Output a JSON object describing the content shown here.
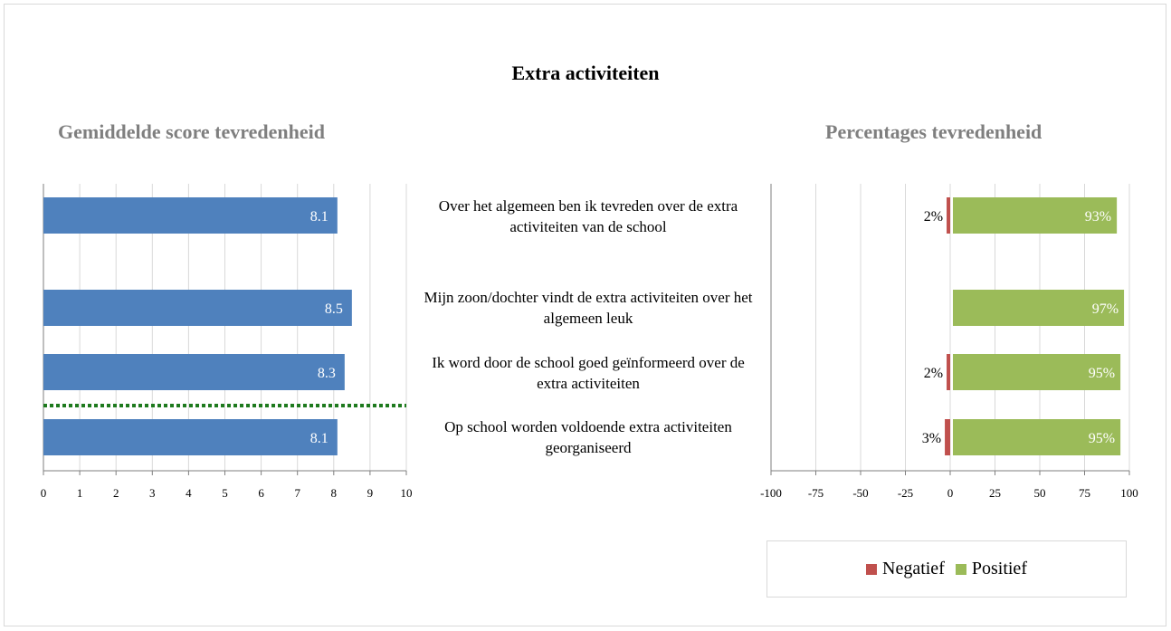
{
  "title": "Extra activiteiten",
  "questions": [
    "Over het algemeen ben ik tevreden over de extra activiteiten van de school",
    "Mijn zoon/dochter vindt de extra activiteiten over het algemeen leuk",
    "Ik word door de school goed geïnformeerd over de extra activiteiten",
    "Op school worden voldoende extra activiteiten georganiseerd"
  ],
  "colors": {
    "score_bar": "#4f81bd",
    "negative": "#c0504d",
    "positive": "#9bbb59",
    "reference_line": "#1e7a1e",
    "grid": "#d9d9d9"
  },
  "chart_data": [
    {
      "type": "bar",
      "orientation": "horizontal",
      "title": "Gemiddelde score tevredenheid",
      "categories": [
        "Over het algemeen ben ik tevreden over de extra activiteiten van de school",
        "Mijn zoon/dochter vindt de extra activiteiten over het algemeen leuk",
        "Ik word door de school goed geïnformeerd over de extra activiteiten",
        "Op school worden voldoende extra activiteiten georganiseerd"
      ],
      "values": [
        8.1,
        8.5,
        8.3,
        8.1
      ],
      "value_labels": [
        "8.1",
        "8.5",
        "8.3",
        "8.1"
      ],
      "xlim": [
        0,
        10
      ],
      "x_ticks": [
        "0",
        "1",
        "2",
        "3",
        "4",
        "5",
        "6",
        "7",
        "8",
        "9",
        "10"
      ],
      "grid": true,
      "reference_line": {
        "style": "dotted",
        "position": "between 3rd and 4th bar"
      }
    },
    {
      "type": "bar",
      "orientation": "horizontal",
      "stacked": "diverging",
      "title": "Percentages tevredenheid",
      "categories": [
        "Over het algemeen ben ik tevreden over de extra activiteiten van de school",
        "Mijn zoon/dochter vindt de extra activiteiten over het algemeen leuk",
        "Ik word door de school goed geïnformeerd over de extra activiteiten",
        "Op school worden voldoende extra activiteiten georganiseerd"
      ],
      "series": [
        {
          "name": "Negatief",
          "values": [
            -2,
            0,
            -2,
            -3
          ],
          "labels": [
            "2%",
            "",
            "2%",
            "3%"
          ]
        },
        {
          "name": "Positief",
          "values": [
            93,
            97,
            95,
            95
          ],
          "labels": [
            "93%",
            "97%",
            "95%",
            "95%"
          ]
        }
      ],
      "xlim": [
        -100,
        100
      ],
      "x_ticks": [
        "-100",
        "-75",
        "-50",
        "-25",
        "0",
        "25",
        "50",
        "75",
        "100"
      ],
      "grid": true,
      "legend": {
        "position": "bottom",
        "entries": [
          "Negatief",
          "Positief"
        ]
      }
    }
  ]
}
